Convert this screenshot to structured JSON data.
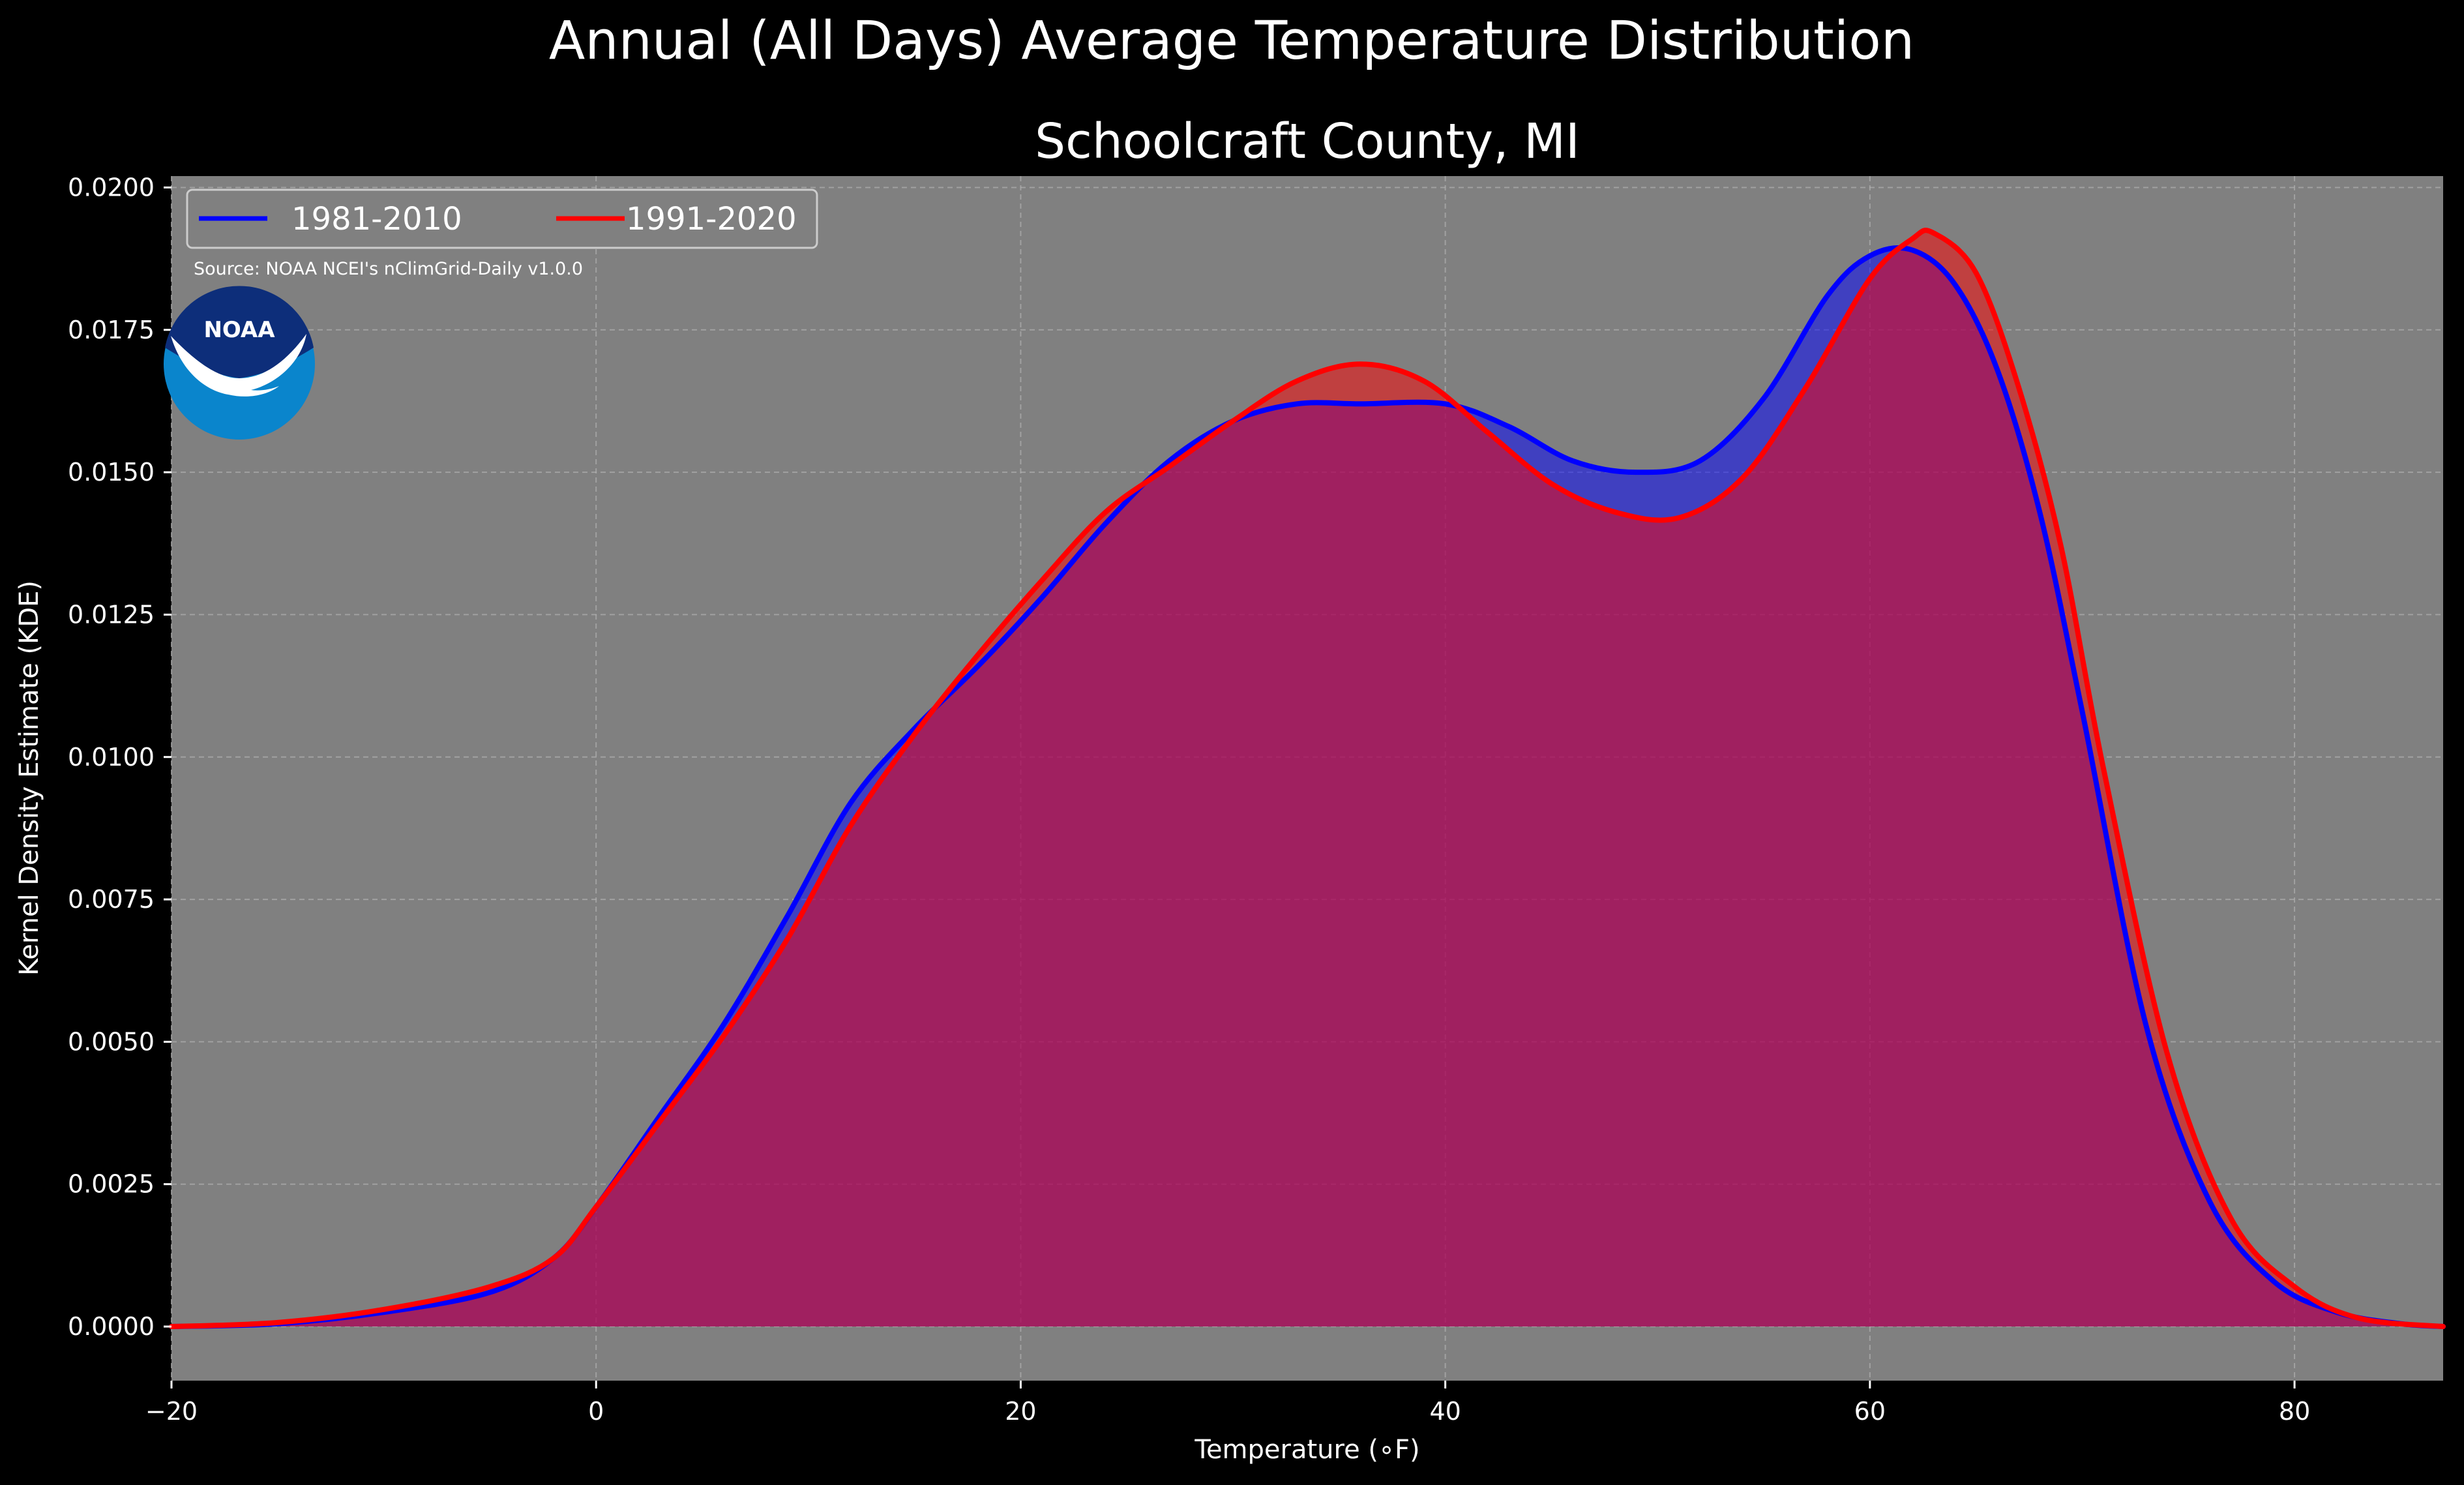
{
  "chart_data": {
    "type": "area",
    "title": "Annual (All Days) Average Temperature Distribution",
    "subtitle": "Schoolcraft County, MI",
    "xlabel": "Temperature (∘F)",
    "ylabel": "Kernel Density Estimate (KDE)",
    "xlim": [
      -20,
      87
    ],
    "ylim": [
      -0.00095,
      0.0202
    ],
    "xticks": [
      -20,
      0,
      20,
      40,
      60,
      80
    ],
    "xtick_labels": [
      "−20",
      "0",
      "20",
      "40",
      "60",
      "80"
    ],
    "yticks": [
      0,
      0.0025,
      0.005,
      0.0075,
      0.01,
      0.0125,
      0.015,
      0.0175,
      0.02
    ],
    "ytick_labels": [
      "0.0000",
      "0.0025",
      "0.0050",
      "0.0075",
      "0.0100",
      "0.0125",
      "0.0150",
      "0.0175",
      "0.0200"
    ],
    "grid": true,
    "legend_position": "top-left",
    "source_note": "Source: NOAA NCEI's nClimGrid-Daily v1.0.0",
    "logo_text": "NOAA",
    "series": [
      {
        "name": "1981-2010",
        "color": "#0000ff",
        "x": [
          -20,
          -15,
          -10,
          -5,
          -2,
          0,
          3,
          6,
          9,
          12,
          15,
          18,
          21,
          24,
          27,
          30,
          33,
          36,
          40,
          43,
          46,
          49,
          52,
          55,
          58,
          60,
          62,
          64,
          66,
          68,
          70,
          73,
          76,
          79,
          82,
          85,
          87
        ],
        "y": [
          0.0,
          5e-05,
          0.00025,
          0.0006,
          0.0012,
          0.0021,
          0.0037,
          0.0053,
          0.0072,
          0.0092,
          0.0105,
          0.0116,
          0.0128,
          0.0141,
          0.0152,
          0.0159,
          0.0162,
          0.0162,
          0.0162,
          0.0158,
          0.0152,
          0.015,
          0.0152,
          0.0163,
          0.0181,
          0.0188,
          0.0189,
          0.0183,
          0.0168,
          0.0143,
          0.0108,
          0.0053,
          0.0022,
          0.0008,
          0.00025,
          5e-05,
          0.0
        ]
      },
      {
        "name": "1991-2020",
        "color": "#ff0000",
        "x": [
          -20,
          -15,
          -10,
          -5,
          -2,
          0,
          3,
          6,
          9,
          12,
          15,
          18,
          21,
          24,
          27,
          30,
          33,
          36,
          39,
          42,
          45,
          48,
          51,
          54,
          57,
          60,
          62,
          63,
          65,
          67,
          69,
          71,
          74,
          77,
          80,
          83,
          87
        ],
        "y": [
          0.0,
          7e-05,
          0.0003,
          0.0007,
          0.0012,
          0.0021,
          0.0036,
          0.0051,
          0.0068,
          0.0088,
          0.0104,
          0.0118,
          0.0131,
          0.0143,
          0.0151,
          0.0159,
          0.0166,
          0.0169,
          0.0166,
          0.0157,
          0.0148,
          0.0143,
          0.0142,
          0.0149,
          0.0165,
          0.0184,
          0.0191,
          0.0192,
          0.0185,
          0.0165,
          0.0137,
          0.0098,
          0.0048,
          0.0019,
          0.0007,
          0.00015,
          0.0
        ]
      }
    ]
  }
}
